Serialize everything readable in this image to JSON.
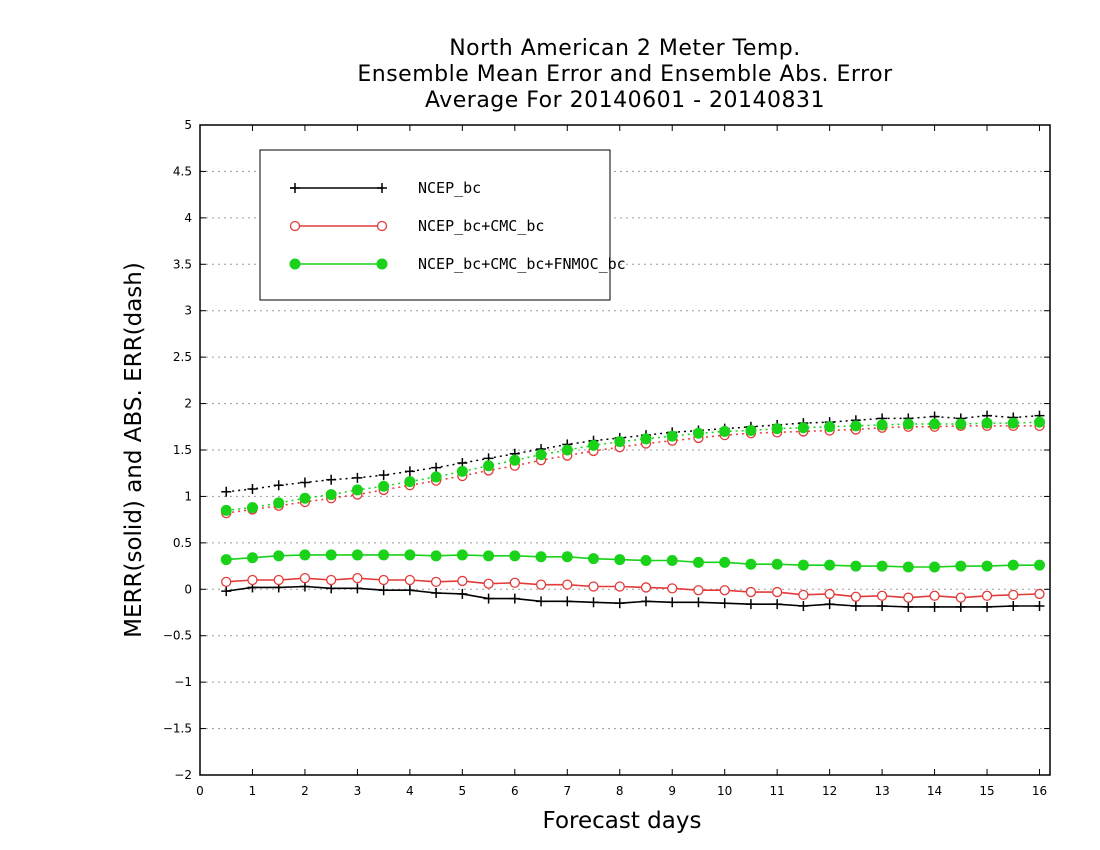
{
  "chart_data": {
    "type": "line",
    "title": [
      "North American 2 Meter Temp.",
      "Ensemble Mean Error and Ensemble Abs. Error",
      "Average For 20140601 - 20140831"
    ],
    "xlabel": "Forecast days",
    "ylabel": "MERR(solid) and ABS. ERR(dash)",
    "xlim": [
      0,
      16.2
    ],
    "ylim": [
      -2,
      5
    ],
    "xticks": [
      "0",
      "1",
      "2",
      "3",
      "4",
      "5",
      "6",
      "7",
      "8",
      "9",
      "10",
      "11",
      "12",
      "13",
      "14",
      "15",
      "16"
    ],
    "yticks": [
      "-2",
      "-1.5",
      "-1",
      "-0.5",
      "0",
      "0.5",
      "1",
      "1.5",
      "2",
      "2.5",
      "3",
      "3.5",
      "4",
      "4.5",
      "5"
    ],
    "grid": true,
    "legend_position": "top-left",
    "x": [
      0.5,
      1.0,
      1.5,
      2.0,
      2.5,
      3.0,
      3.5,
      4.0,
      4.5,
      5.0,
      5.5,
      6.0,
      6.5,
      7.0,
      7.5,
      8.0,
      8.5,
      9.0,
      9.5,
      10.0,
      10.5,
      11.0,
      11.5,
      12.0,
      12.5,
      13.0,
      13.5,
      14.0,
      14.5,
      15.0,
      15.5,
      16.0
    ],
    "series": [
      {
        "name": "NCEP_bc",
        "color": "#000000",
        "marker": "plus",
        "merr": [
          -0.02,
          0.02,
          0.02,
          0.03,
          0.01,
          0.01,
          -0.01,
          -0.01,
          -0.04,
          -0.05,
          -0.1,
          -0.1,
          -0.13,
          -0.13,
          -0.14,
          -0.15,
          -0.13,
          -0.14,
          -0.14,
          -0.15,
          -0.16,
          -0.16,
          -0.18,
          -0.16,
          -0.18,
          -0.18,
          -0.19,
          -0.19,
          -0.19,
          -0.19,
          -0.18,
          -0.18
        ],
        "abs_err": [
          1.05,
          1.08,
          1.12,
          1.15,
          1.18,
          1.2,
          1.23,
          1.27,
          1.31,
          1.36,
          1.41,
          1.46,
          1.51,
          1.56,
          1.6,
          1.63,
          1.66,
          1.69,
          1.71,
          1.73,
          1.75,
          1.77,
          1.79,
          1.8,
          1.82,
          1.84,
          1.84,
          1.86,
          1.84,
          1.87,
          1.85,
          1.87
        ]
      },
      {
        "name": "NCEP_bc+CMC_bc",
        "color": "#e33a3a",
        "marker": "open-circle",
        "merr": [
          0.08,
          0.1,
          0.1,
          0.12,
          0.1,
          0.12,
          0.1,
          0.1,
          0.08,
          0.09,
          0.06,
          0.07,
          0.05,
          0.05,
          0.03,
          0.03,
          0.02,
          0.01,
          -0.01,
          -0.01,
          -0.03,
          -0.03,
          -0.06,
          -0.05,
          -0.08,
          -0.07,
          -0.09,
          -0.07,
          -0.09,
          -0.07,
          -0.06,
          -0.05
        ],
        "abs_err": [
          0.82,
          0.86,
          0.9,
          0.94,
          0.98,
          1.02,
          1.07,
          1.12,
          1.17,
          1.22,
          1.28,
          1.33,
          1.39,
          1.44,
          1.49,
          1.53,
          1.57,
          1.6,
          1.63,
          1.66,
          1.68,
          1.69,
          1.7,
          1.71,
          1.72,
          1.74,
          1.75,
          1.75,
          1.76,
          1.76,
          1.76,
          1.76
        ]
      },
      {
        "name": "NCEP_bc+CMC_bc+FNMOC_bc",
        "color": "#19d219",
        "marker": "filled-circle",
        "merr": [
          0.32,
          0.34,
          0.36,
          0.37,
          0.37,
          0.37,
          0.37,
          0.37,
          0.36,
          0.37,
          0.36,
          0.36,
          0.35,
          0.35,
          0.33,
          0.32,
          0.31,
          0.31,
          0.29,
          0.29,
          0.27,
          0.27,
          0.26,
          0.26,
          0.25,
          0.25,
          0.24,
          0.24,
          0.25,
          0.25,
          0.26,
          0.26
        ],
        "abs_err": [
          0.85,
          0.88,
          0.93,
          0.98,
          1.02,
          1.07,
          1.11,
          1.16,
          1.21,
          1.27,
          1.33,
          1.39,
          1.45,
          1.5,
          1.55,
          1.59,
          1.62,
          1.65,
          1.68,
          1.7,
          1.71,
          1.73,
          1.74,
          1.75,
          1.76,
          1.77,
          1.78,
          1.78,
          1.78,
          1.79,
          1.79,
          1.8
        ]
      }
    ]
  }
}
